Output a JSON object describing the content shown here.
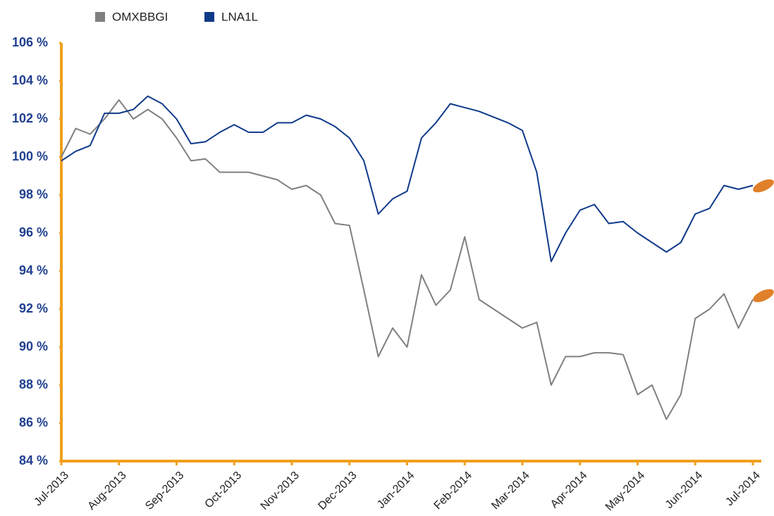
{
  "chart_data": {
    "type": "line",
    "x": [
      0,
      0.25,
      0.5,
      0.75,
      1,
      1.25,
      1.5,
      1.75,
      2,
      2.25,
      2.5,
      2.75,
      3,
      3.25,
      3.5,
      3.75,
      4,
      4.25,
      4.5,
      4.75,
      5,
      5.25,
      5.5,
      5.75,
      6,
      6.25,
      6.5,
      6.75,
      7,
      7.25,
      7.5,
      7.75,
      8,
      8.25,
      8.5,
      8.75,
      9,
      9.25,
      9.5,
      9.75,
      10,
      10.25,
      10.5,
      10.75,
      11,
      11.25,
      11.5,
      11.75,
      12
    ],
    "series": [
      {
        "name": "OMXBBGI",
        "color": "#808080",
        "values": [
          100.0,
          101.5,
          101.2,
          102.0,
          103.0,
          102.0,
          102.5,
          102.0,
          101.0,
          99.8,
          99.9,
          99.2,
          99.2,
          99.2,
          99.0,
          98.8,
          98.3,
          98.5,
          98.0,
          96.5,
          96.4,
          93.0,
          89.5,
          91.0,
          90.0,
          93.8,
          92.2,
          93.0,
          95.8,
          92.5,
          92.0,
          91.5,
          91.0,
          91.3,
          88.0,
          89.5,
          89.5,
          89.7,
          89.7,
          89.6,
          87.5,
          88.0,
          86.2,
          87.5,
          91.5,
          92.0,
          92.8,
          91.0,
          92.5
        ]
      },
      {
        "name": "LNA1L",
        "color": "#0f3a8a",
        "values": [
          99.8,
          100.3,
          100.6,
          102.3,
          102.3,
          102.5,
          103.2,
          102.8,
          102.0,
          100.7,
          100.8,
          101.3,
          101.7,
          101.3,
          101.3,
          101.8,
          101.8,
          102.2,
          102.0,
          101.6,
          101.0,
          99.8,
          97.0,
          97.8,
          98.2,
          101.0,
          101.8,
          102.8,
          102.6,
          102.4,
          102.1,
          101.8,
          101.4,
          99.2,
          94.5,
          96.0,
          97.2,
          97.5,
          96.5,
          96.6,
          96.0,
          95.5,
          95.0,
          95.5,
          97.0,
          97.3,
          98.5,
          98.3,
          98.5
        ]
      }
    ],
    "xlim": [
      0,
      12
    ],
    "xticks": [
      {
        "value": 0,
        "label": "Jul-2013"
      },
      {
        "value": 1,
        "label": "Aug-2013"
      },
      {
        "value": 2,
        "label": "Sep-2013"
      },
      {
        "value": 3,
        "label": "Oct-2013"
      },
      {
        "value": 4,
        "label": "Nov-2013"
      },
      {
        "value": 5,
        "label": "Dec-2013"
      },
      {
        "value": 6,
        "label": "Jan-2014"
      },
      {
        "value": 7,
        "label": "Feb-2014"
      },
      {
        "value": 8,
        "label": "Mar-2014"
      },
      {
        "value": 9,
        "label": "Apr-2014"
      },
      {
        "value": 10,
        "label": "May-2014"
      },
      {
        "value": 11,
        "label": "Jun-2014"
      },
      {
        "value": 12,
        "label": "Jul-2014"
      }
    ],
    "ylim": [
      84,
      106
    ],
    "yticks": [
      {
        "value": 84,
        "label": "84 %"
      },
      {
        "value": 86,
        "label": "86 %"
      },
      {
        "value": 88,
        "label": "88 %"
      },
      {
        "value": 90,
        "label": "90 %"
      },
      {
        "value": 92,
        "label": "92 %"
      },
      {
        "value": 94,
        "label": "94 %"
      },
      {
        "value": 96,
        "label": "96 %"
      },
      {
        "value": 98,
        "label": "98 %"
      },
      {
        "value": 100,
        "label": "100 %"
      },
      {
        "value": 102,
        "label": "102 %"
      },
      {
        "value": 104,
        "label": "104 %"
      },
      {
        "value": 106,
        "label": "106 %"
      }
    ],
    "axis_color": "#f0a01e"
  }
}
